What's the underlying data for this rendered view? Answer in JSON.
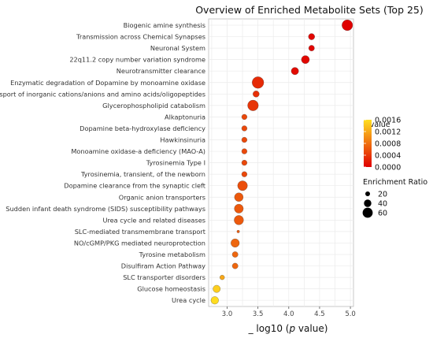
{
  "chart_data": {
    "type": "scatter",
    "title": "Overview of Enriched Metabolite Sets (Top 25)",
    "xlabel_prefix": "_ log10 (",
    "xlabel_italic": "p",
    "xlabel_suffix": " value)",
    "ylabel": "",
    "xlim": [
      2.7,
      5.05
    ],
    "xticks": [
      3.0,
      3.5,
      4.0,
      4.5,
      5.0
    ],
    "xtick_labels": [
      "3.0",
      "3.5",
      "4.0",
      "4.5",
      "5.0"
    ],
    "grid": true,
    "categories": [
      "Biogenic amine synthesis",
      "Transmission across Chemical Synapses",
      "Neuronal System",
      "22q11.2 copy number variation syndrome",
      "Neurotransmitter clearance",
      "Enzymatic degradation of Dopamine by monoamine oxidase",
      "Transport of inorganic cations/anions and amino acids/oligopeptides",
      "Glycerophospholipid catabolism",
      "Alkaptonuria",
      "Dopamine beta-hydroxylase deficiency",
      "Hawkinsinuria",
      "Monoamine oxidase-a deficiency (MAO-A)",
      "Tyrosinemia Type I",
      "Tyrosinemia, transient, of the newborn",
      "Dopamine clearance from the synaptic cleft",
      "Organic anion transporters",
      "Sudden infant death syndrome (SIDS) susceptibility pathways",
      "Urea cycle and related diseases",
      "SLC-mediated transmembrane transport",
      "NO/cGMP/PKG mediated neuroprotection",
      "Tyrosine metabolism",
      "Disulfiram Action Pathway",
      "SLC transporter disorders",
      "Glucose homeostasis",
      "Urea cycle"
    ],
    "x": [
      4.95,
      4.37,
      4.37,
      4.27,
      4.1,
      3.5,
      3.47,
      3.42,
      3.28,
      3.28,
      3.28,
      3.28,
      3.28,
      3.28,
      3.25,
      3.19,
      3.19,
      3.19,
      3.18,
      3.13,
      3.13,
      3.13,
      2.92,
      2.83,
      2.8
    ],
    "pvalue": [
      1e-05,
      4e-05,
      4e-05,
      5e-05,
      8e-05,
      0.0003,
      0.00034,
      0.00038,
      0.00052,
      0.00052,
      0.00052,
      0.00052,
      0.00052,
      0.00052,
      0.00056,
      0.00064,
      0.00064,
      0.00064,
      0.00066,
      0.00074,
      0.00074,
      0.00074,
      0.0012,
      0.00148,
      0.00158
    ],
    "enrichment_ratio": [
      65,
      32,
      28,
      45,
      40,
      72,
      32,
      65,
      25,
      25,
      25,
      25,
      25,
      25,
      58,
      50,
      52,
      55,
      5,
      48,
      28,
      28,
      20,
      40,
      42
    ],
    "legend": {
      "color_title": "P-value",
      "color_ticks": [
        "0.0016",
        "0.0012",
        "0.0008",
        "0.0004",
        "0.0000"
      ],
      "color_tick_values": [
        0.0016,
        0.0012,
        0.0008,
        0.0004,
        0.0
      ],
      "color_low": "#e00000",
      "color_high": "#ffdf20",
      "size_title": "Enrichment Ratio",
      "size_values": [
        20,
        40,
        60
      ],
      "size_labels": [
        "20",
        "40",
        "60"
      ],
      "placement": "right"
    },
    "point_stroke": "#444444",
    "grid_color": "#ebebeb",
    "panel_border": "#bdbdbd"
  }
}
